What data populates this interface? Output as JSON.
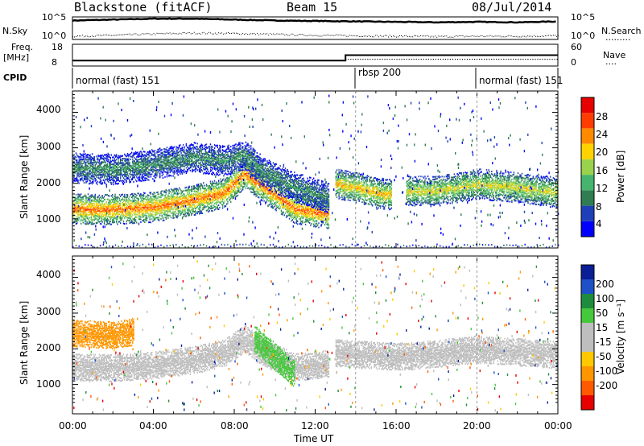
{
  "header": {
    "station": "Blackstone (fitACF)",
    "beam": "Beam 15",
    "date": "08/Jul/2014"
  },
  "noise_panel": {
    "left_label": "N.Sky",
    "right_label": "N.Search",
    "ticks_left": [
      "10^5",
      "10^0"
    ],
    "ticks_right": [
      "10^5",
      "10^0"
    ]
  },
  "freq_panel": {
    "left_label_1": "Freq.",
    "left_label_2": "[MHz]",
    "right_label": "Nave",
    "ticks_left": [
      "18",
      "8"
    ],
    "ticks_right": [
      "60",
      "0"
    ]
  },
  "cpid": {
    "label": "CPID",
    "segments": [
      {
        "name": "normal (fast) 151",
        "start_hour": 0
      },
      {
        "name": "rbsp 200",
        "start_hour": 14
      },
      {
        "name": "normal (fast) 151",
        "start_hour": 20
      }
    ]
  },
  "axes": {
    "x_label": "Time UT",
    "x_ticks": [
      "00:00",
      "04:00",
      "08:00",
      "12:00",
      "16:00",
      "20:00",
      "00:00"
    ],
    "y_label": "Slant Range [km]",
    "y_ticks": [
      "1000",
      "2000",
      "3000",
      "4000"
    ]
  },
  "colors": {
    "power": [
      "#0000ff",
      "#1f3fb8",
      "#2f7d50",
      "#46b46e",
      "#9bd24b",
      "#ffd200",
      "#ff8a00",
      "#ff3c00",
      "#e60000"
    ],
    "velocity": [
      "#e60000",
      "#ff5a00",
      "#ff9600",
      "#ffc800",
      "#bebebe",
      "#bebebe",
      "#46c83c",
      "#1e8c3c",
      "#1e50c8",
      "#0a1e96"
    ]
  },
  "power_scale": {
    "title": "Power [dB]",
    "ticks": [
      "4",
      "8",
      "12",
      "16",
      "20",
      "24",
      "28"
    ]
  },
  "velocity_scale": {
    "title": "Velocity [m s⁻¹]",
    "ticks": [
      "200",
      "100",
      "50",
      "15",
      "-15",
      "-50",
      "-100",
      "-200"
    ]
  },
  "chart_data": [
    {
      "type": "line",
      "title": "",
      "x": [
        0,
        2,
        4,
        6,
        8,
        10,
        12,
        14,
        16,
        18,
        20,
        22,
        24
      ],
      "series": [
        {
          "name": "N.Sky",
          "values": [
            4.2,
            4.4,
            4.6,
            4.6,
            4.4,
            4.2,
            4.1,
            4.0,
            3.9,
            3.8,
            3.9,
            3.8,
            4.0
          ]
        },
        {
          "name": "N.Search",
          "values": [
            0.8,
            1.0,
            1.3,
            1.5,
            1.4,
            1.2,
            1.0,
            0.9,
            0.8,
            0.7,
            0.8,
            0.8,
            0.9
          ]
        }
      ],
      "ylim_log10": [
        0,
        5
      ]
    },
    {
      "type": "line",
      "title": "",
      "x": [
        0,
        13.5,
        13.5,
        24
      ],
      "series": [
        {
          "name": "Freq.",
          "values": [
            10.5,
            10.5,
            13.0,
            13.0
          ]
        },
        {
          "name": "Nave",
          "values": [
            0,
            0,
            20,
            20
          ]
        }
      ],
      "ylim": [
        8,
        18
      ]
    },
    {
      "type": "heatmap",
      "title": "",
      "xlabel": "Time UT",
      "ylabel": "Slant Range [km]",
      "xlim": [
        0,
        24
      ],
      "ylim": [
        180,
        4600
      ],
      "bands": [
        {
          "x": [
            0,
            2,
            4,
            6,
            7.5,
            8.5,
            9.5,
            11,
            12.7
          ],
          "center_km": [
            1300,
            1280,
            1350,
            1550,
            1750,
            2300,
            1900,
            1300,
            1150
          ],
          "power_db": 24
        },
        {
          "x": [
            0,
            2,
            4,
            6,
            7.5,
            8.5,
            9.5,
            11,
            12.7
          ],
          "center_km": [
            2450,
            2400,
            2550,
            2750,
            2650,
            2800,
            2300,
            1900,
            1600
          ],
          "power_db": 10
        },
        {
          "x": [
            13,
            14,
            15,
            15.8
          ],
          "center_km": [
            2000,
            1900,
            1750,
            1700
          ],
          "power_db": 20
        },
        {
          "x": [
            16.5,
            18,
            20,
            22,
            24
          ],
          "center_km": [
            1800,
            1800,
            2000,
            1900,
            1750
          ],
          "power_db": 18
        }
      ]
    },
    {
      "type": "heatmap",
      "title": "",
      "xlabel": "Time UT",
      "ylabel": "Slant Range [km]",
      "xlim": [
        0,
        24
      ],
      "ylim": [
        180,
        4600
      ],
      "bands": [
        {
          "x": [
            0,
            2,
            4,
            6,
            7.5,
            8.5,
            9.5,
            11,
            12.7
          ],
          "center_km": [
            1500,
            1480,
            1550,
            1700,
            1900,
            2300,
            1900,
            1500,
            1600
          ],
          "velocity": 0
        },
        {
          "x": [
            0,
            2,
            3
          ],
          "center_km": [
            2450,
            2400,
            2500
          ],
          "velocity": -60
        },
        {
          "x": [
            13,
            15.8,
            16.5,
            20,
            24
          ],
          "center_km": [
            1900,
            1800,
            1800,
            2000,
            1850
          ],
          "velocity": 0
        },
        {
          "x": [
            9,
            10,
            11
          ],
          "center_km": [
            2300,
            1800,
            1300
          ],
          "velocity": 40
        }
      ]
    }
  ]
}
